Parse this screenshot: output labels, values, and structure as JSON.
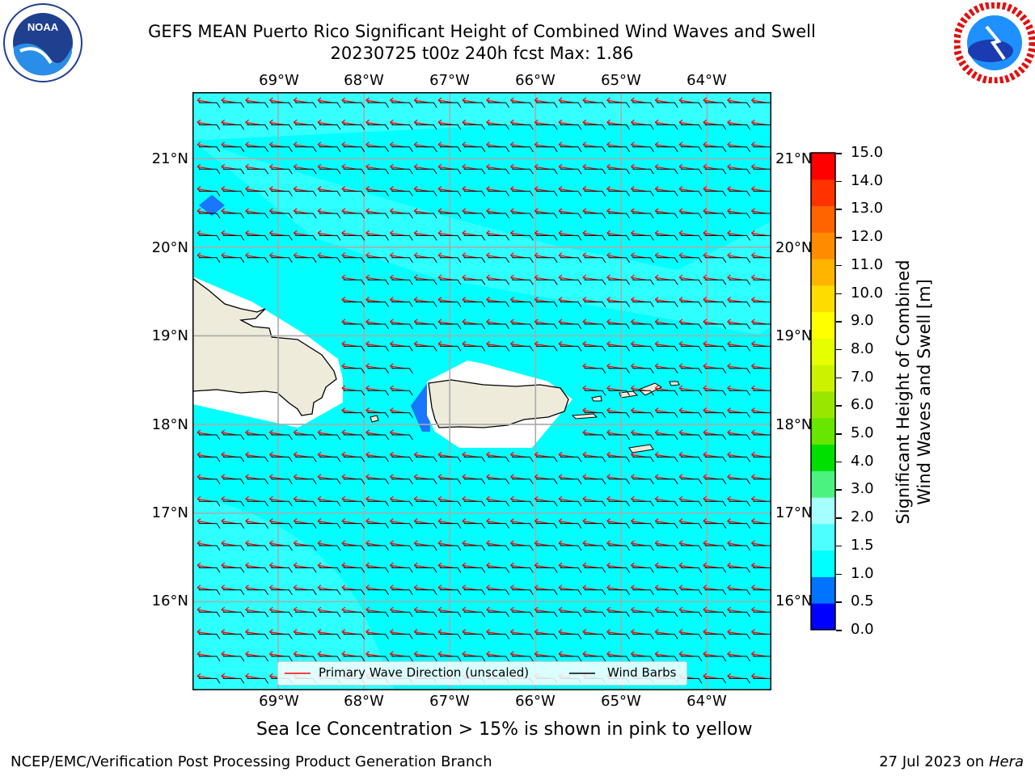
{
  "header": {
    "title_line1": "GEFS MEAN Puerto Rico Significant Height of Combined Wind Waves and Swell",
    "title_line2": "20230725 t00z 240h fcst   Max: 1.86"
  },
  "logos": {
    "left": {
      "text": "NOAA",
      "caption": "NATIONAL OCEANIC AND ATMOSPHERIC ADMINISTRATION · U.S. DEPARTMENT OF COMMERCE"
    },
    "right": {
      "caption": "NATIONAL WEATHER SERVICE"
    }
  },
  "map": {
    "lon_labels": [
      "69°W",
      "68°W",
      "67°W",
      "66°W",
      "65°W",
      "64°W"
    ],
    "lat_labels": [
      "21°N",
      "20°N",
      "19°N",
      "18°N",
      "17°N",
      "16°N"
    ],
    "lon_range": [
      -70,
      -63.25
    ],
    "lat_range": [
      15.0,
      21.75
    ],
    "colors": {
      "ocean": "#00ffff",
      "ocean_light": "#4dffff",
      "land": "#eeebdb",
      "dark_blue": "#1a75ff",
      "wave_arrow": "#ff0000",
      "wind_barb": "#000000"
    }
  },
  "legend": {
    "wave": "Primary Wave Direction (unscaled)",
    "wind": "Wind Barbs"
  },
  "colorbar": {
    "label_line1": "Significant Height of Combined",
    "label_line2": "Wind Waves and Swell [m]",
    "ticks": [
      "15.0",
      "14.0",
      "13.0",
      "12.0",
      "11.0",
      "10.0",
      "9.0",
      "8.0",
      "7.0",
      "6.0",
      "5.0",
      "4.0",
      "3.0",
      "2.0",
      "1.5",
      "1.0",
      "0.5",
      "0.0"
    ],
    "bands": [
      {
        "color": "#0000ff"
      },
      {
        "color": "#0073ff"
      },
      {
        "color": "#00ffff"
      },
      {
        "color": "#4dffff"
      },
      {
        "color": "#a6ffff"
      },
      {
        "color": "#4cf27f"
      },
      {
        "color": "#00e000"
      },
      {
        "color": "#66e600"
      },
      {
        "color": "#99e600"
      },
      {
        "color": "#ccf200"
      },
      {
        "color": "#e6ff00"
      },
      {
        "color": "#ffff00"
      },
      {
        "color": "#ffdc00"
      },
      {
        "color": "#ffb400"
      },
      {
        "color": "#ff8c00"
      },
      {
        "color": "#ff6400"
      },
      {
        "color": "#ff3200"
      },
      {
        "color": "#ff0000"
      }
    ]
  },
  "caption": "Sea Ice Concentration > 15% is shown in pink to yellow",
  "footer": {
    "left": "NCEP/EMC/Verification Post Processing Product Generation Branch",
    "right_date": "27 Jul 2023 on ",
    "right_host": "Hera"
  }
}
